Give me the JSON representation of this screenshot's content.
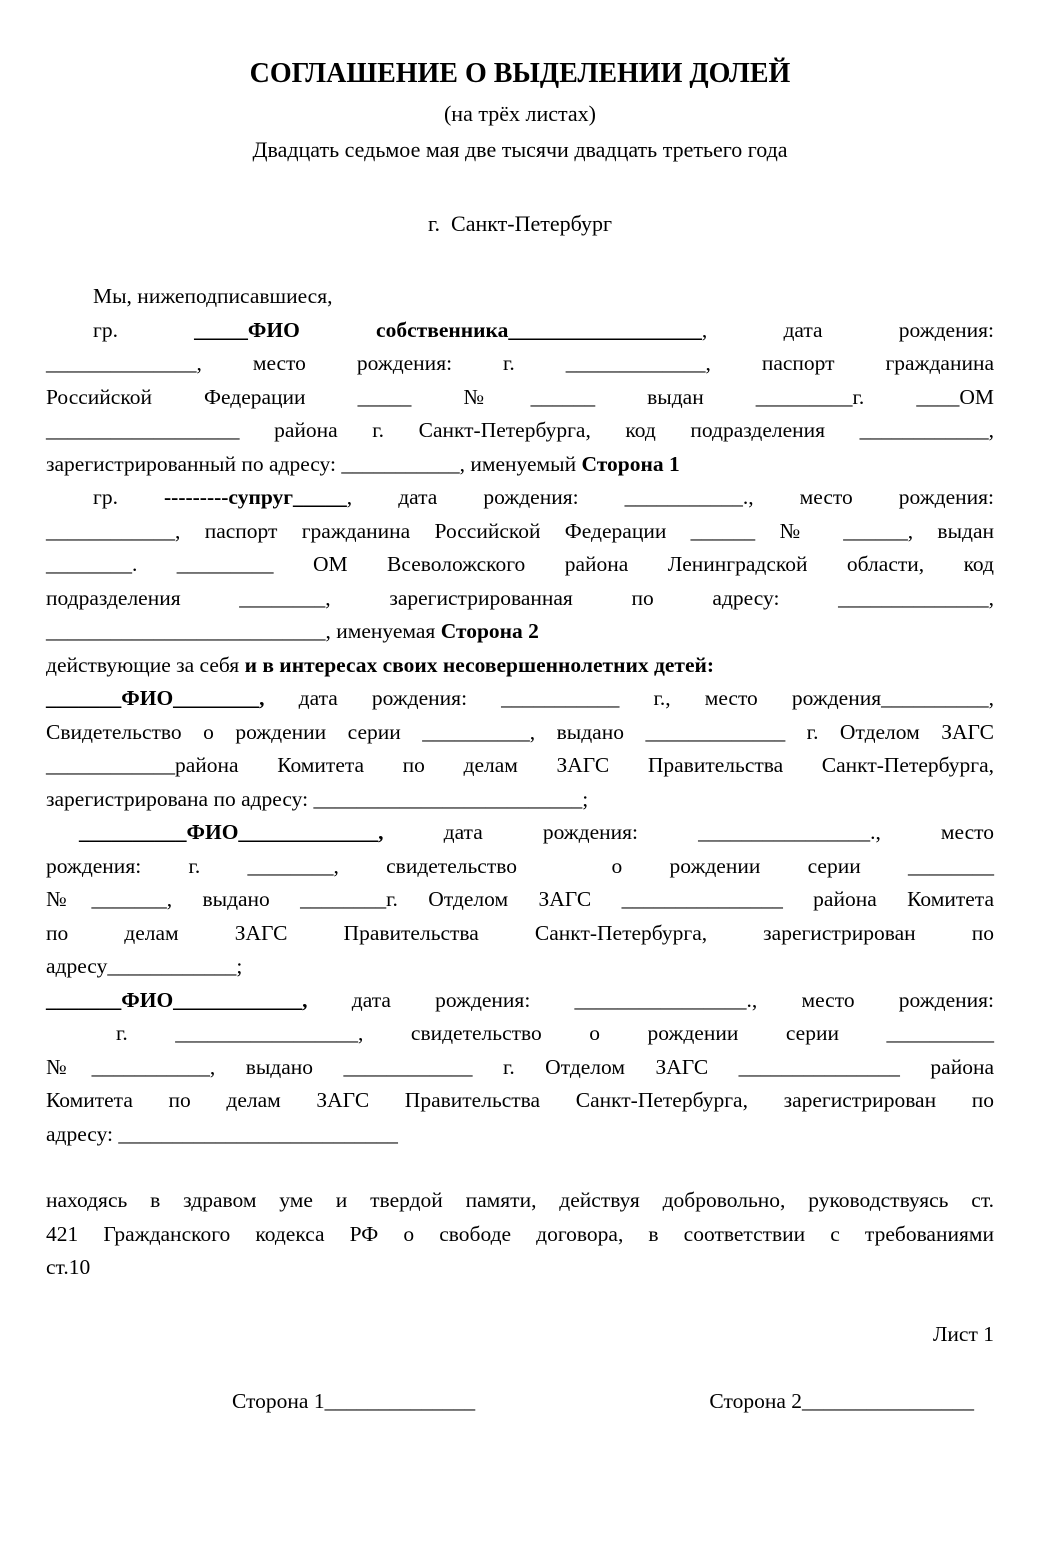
{
  "page": {
    "background": "#ffffff",
    "text_color": "#000000"
  },
  "header": {
    "title": "СОГЛАШЕНИЕ О ВЫДЕЛЕНИИ ДОЛЕЙ",
    "subtitle": "(на трёх листах)",
    "date_line": "Двадцать седьмое мая две тысячи двадцать третьего года",
    "city_line": "г.  Санкт-Петербург"
  },
  "body": {
    "lines": [
      {
        "id": "intro-line",
        "indent": 47,
        "justify": false,
        "runs": [
          {
            "t": "Мы, нижеподписавшиеся,"
          }
        ]
      },
      {
        "id": "party1-line-1",
        "indent": 47,
        "justify": true,
        "runs": [
          {
            "t": "гр. "
          },
          {
            "t": "_____ФИО собственника__________________",
            "b": true
          },
          {
            "t": ", дата рождения:"
          }
        ]
      },
      {
        "id": "party1-line-2",
        "justify": true,
        "runs": [
          {
            "t": "______________, место рождения: г. _____________, паспорт гражданина"
          }
        ]
      },
      {
        "id": "party1-line-3",
        "justify": true,
        "runs": [
          {
            "t": "Российской Федерации _____ №______ выдан _________г. ____ОМ"
          }
        ]
      },
      {
        "id": "party1-line-4",
        "justify": true,
        "runs": [
          {
            "t": "__________________ района г. Санкт-Петербурга, код подразделения ____________,"
          }
        ]
      },
      {
        "id": "party1-line-5",
        "justify": false,
        "runs": [
          {
            "t": "зарегистрированный по адресу: ___________, именуемый "
          },
          {
            "t": "Сторона 1",
            "b": true
          }
        ]
      },
      {
        "id": "party2-line-1",
        "indent": 47,
        "justify": true,
        "runs": [
          {
            "t": "гр. "
          },
          {
            "t": "---------супруг_____",
            "b": true
          },
          {
            "t": ", дата рождения: ___________., место рождения:"
          }
        ]
      },
      {
        "id": "party2-line-2",
        "justify": true,
        "runs": [
          {
            "t": "____________, паспорт гражданина Российской Федерации ______ № ______, выдан"
          }
        ]
      },
      {
        "id": "party2-line-3",
        "justify": true,
        "runs": [
          {
            "t": "________. _________ ОМ Всеволожского района Ленинградской области, код"
          }
        ]
      },
      {
        "id": "party2-line-4",
        "justify": true,
        "runs": [
          {
            "t": "подразделения ________, зарегистрированная по адресу: ______________,"
          }
        ]
      },
      {
        "id": "party2-line-5",
        "justify": false,
        "runs": [
          {
            "t": "__________________________, именуемая "
          },
          {
            "t": "Сторона 2",
            "b": true
          }
        ]
      },
      {
        "id": "children-intro-line",
        "justify": false,
        "runs": [
          {
            "t": "действующие за себя "
          },
          {
            "t": "и в интересах своих несовершеннолетних детей:",
            "b": true
          }
        ]
      },
      {
        "id": "child1-line-1",
        "justify": true,
        "runs": [
          {
            "t": "_______ФИО________,",
            "b": true
          },
          {
            "t": " дата рождения: ___________ г., место рождения__________,"
          }
        ]
      },
      {
        "id": "child1-line-2",
        "justify": true,
        "runs": [
          {
            "t": "Свидетельство о рождении серии __________, выдано _____________ г. Отделом ЗАГС"
          }
        ]
      },
      {
        "id": "child1-line-3",
        "justify": true,
        "runs": [
          {
            "t": "____________района Комитета по делам ЗАГС Правительства Санкт-Петербурга,"
          }
        ]
      },
      {
        "id": "child1-line-4",
        "justify": false,
        "runs": [
          {
            "t": "зарегистрирована по адресу: _________________________;"
          }
        ]
      },
      {
        "id": "child2-line-1",
        "indent": 33,
        "justify": true,
        "runs": [
          {
            "t": "__________ФИО_____________,",
            "b": true
          },
          {
            "t": " дата рождения: ________________., место"
          }
        ]
      },
      {
        "id": "child2-line-2",
        "justify": true,
        "runs": [
          {
            "t": "рождения: г. ________, свидетельство  о рождении серии ________"
          }
        ]
      },
      {
        "id": "child2-line-3",
        "justify": true,
        "runs": [
          {
            "t": "№_______, выдано ________г. Отделом ЗАГС _______________ района Комитета"
          }
        ]
      },
      {
        "id": "child2-line-4",
        "justify": true,
        "runs": [
          {
            "t": "по делам ЗАГС Правительства Санкт-Петербурга, зарегистрирован по"
          }
        ]
      },
      {
        "id": "child2-line-5",
        "justify": false,
        "runs": [
          {
            "t": "адресу____________;"
          }
        ]
      },
      {
        "id": "child3-line-1",
        "justify": true,
        "runs": [
          {
            "t": "_______ФИО____________,",
            "b": true
          },
          {
            "t": " дата рождения: ________________., место рождения:"
          }
        ]
      },
      {
        "id": "child3-line-2",
        "indent": 70,
        "justify": true,
        "runs": [
          {
            "t": "г. _________________, свидетельство о рождении серии __________"
          }
        ]
      },
      {
        "id": "child3-line-3",
        "justify": true,
        "runs": [
          {
            "t": "№___________, выдано ____________ г. Отделом ЗАГС _______________ района"
          }
        ]
      },
      {
        "id": "child3-line-4",
        "justify": true,
        "runs": [
          {
            "t": "Комитета по делам ЗАГС Правительства Санкт-Петербурга, зарегистрирован по"
          }
        ]
      },
      {
        "id": "child3-line-5",
        "justify": false,
        "runs": [
          {
            "t": "адресу: __________________________"
          }
        ]
      },
      {
        "id": "closing-line-1",
        "gap_before": true,
        "justify": true,
        "runs": [
          {
            "t": "находясь в здравом уме и твердой памяти, действуя добровольно, руководствуясь ст."
          }
        ]
      },
      {
        "id": "closing-line-2",
        "justify": true,
        "runs": [
          {
            "t": "421 Гражданского кодекса РФ о свободе договора, в соответствии с требованиями"
          }
        ]
      },
      {
        "id": "closing-line-3",
        "justify": false,
        "runs": [
          {
            "t": "ст.10"
          }
        ]
      }
    ]
  },
  "footer": {
    "sheet_label": "Лист 1",
    "signature_left": "Сторона 1______________",
    "signature_right": "Сторона 2________________"
  }
}
